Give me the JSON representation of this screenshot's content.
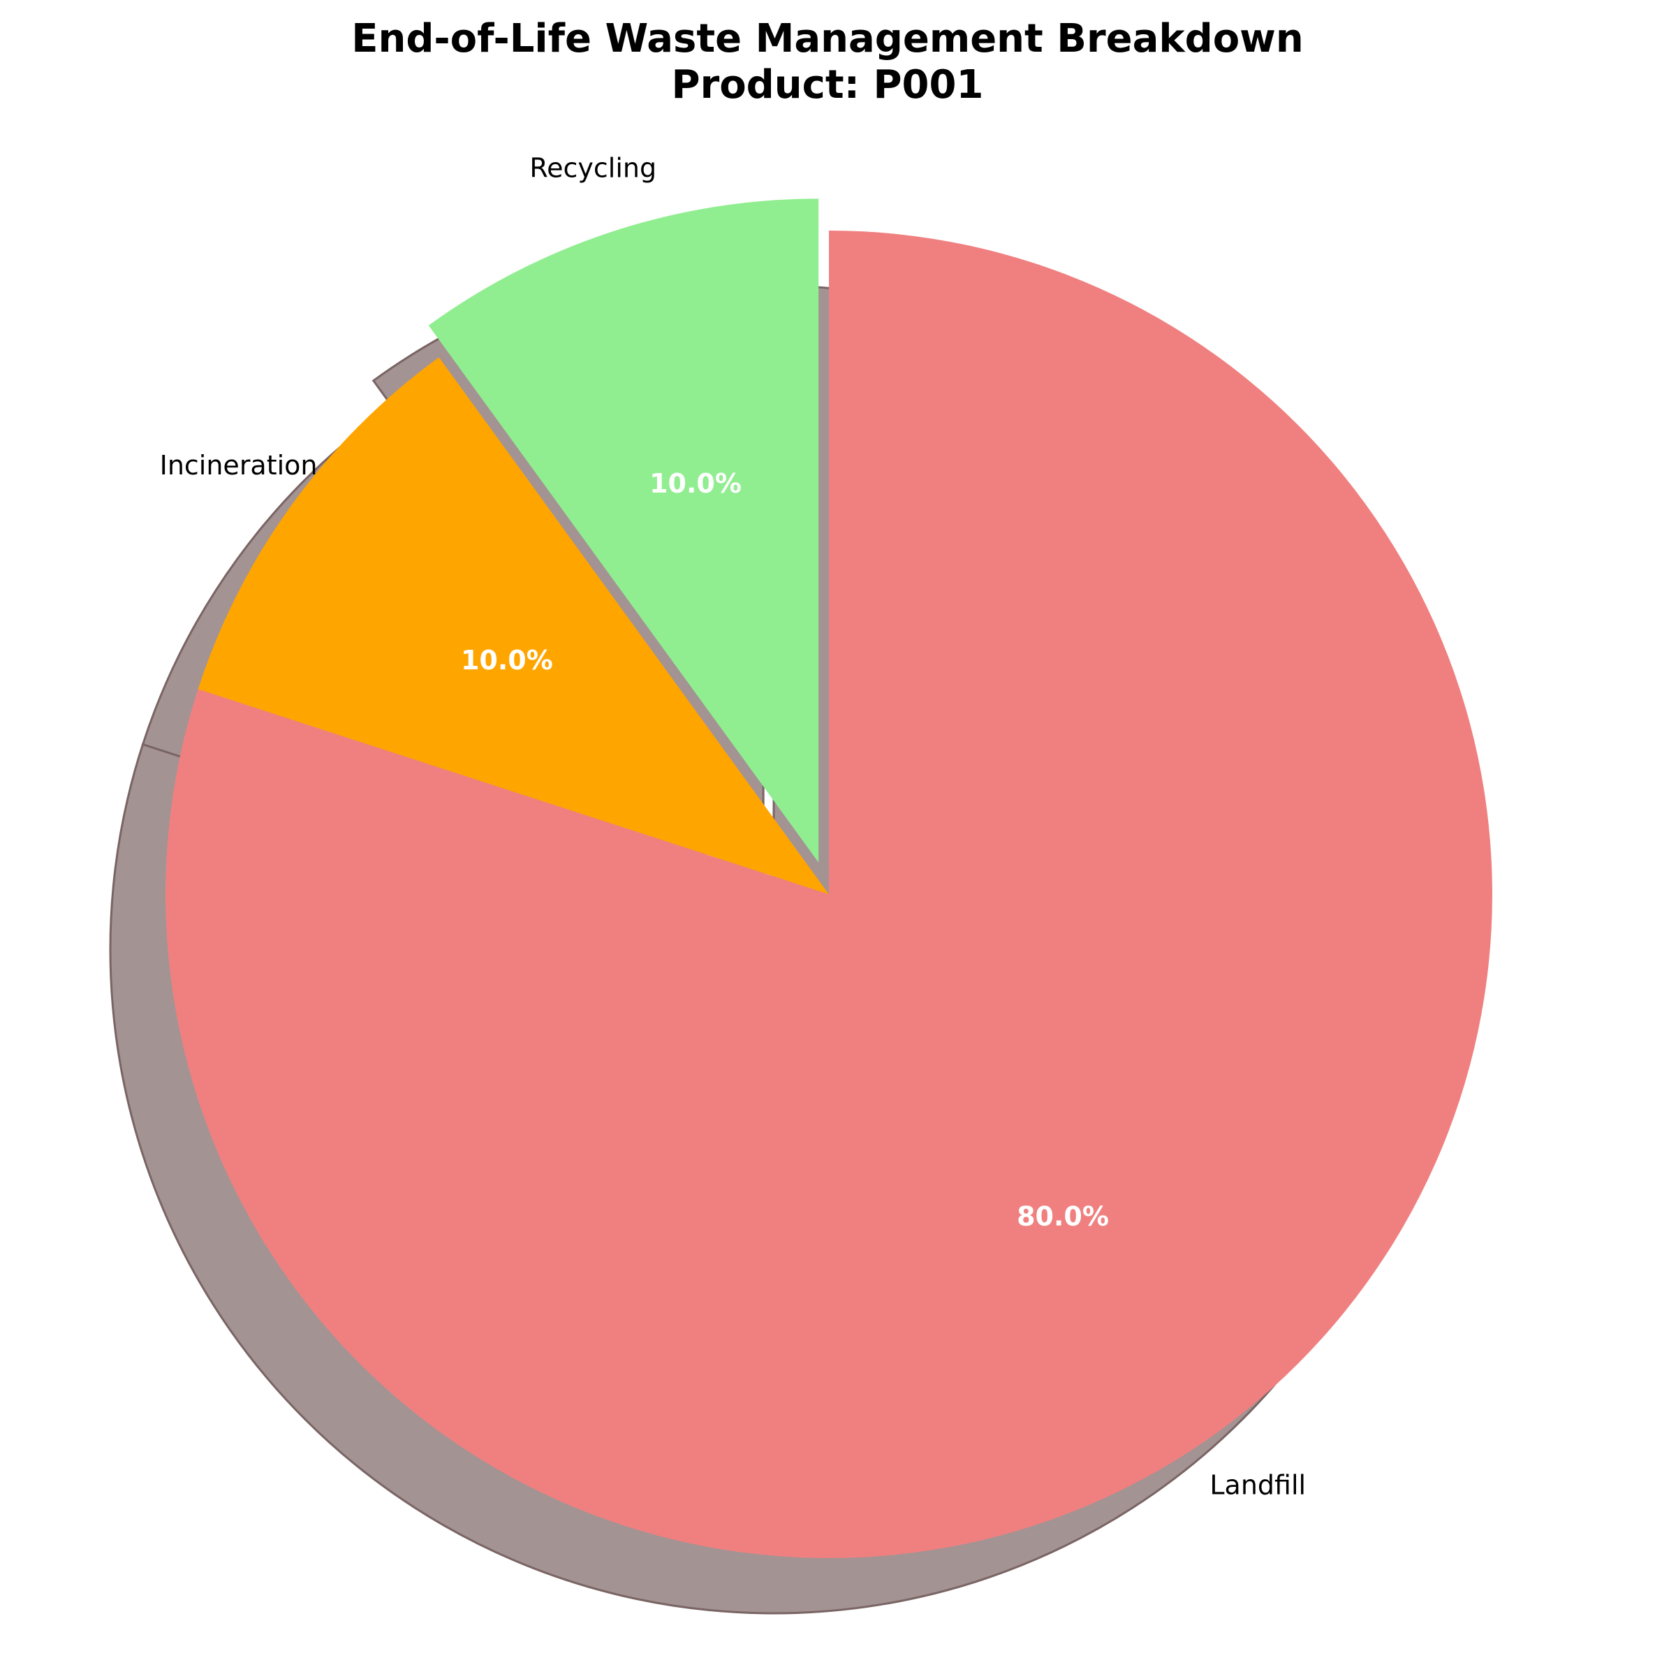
{
  "chart_data": {
    "type": "pie",
    "title": "End-of-Life Waste Management Breakdown",
    "subtitle": "Product: P001",
    "slices": [
      {
        "label": "Recycling",
        "value": 10.0,
        "pct_label": "10.0%",
        "color": "#90EE90",
        "exploded": true
      },
      {
        "label": "Incineration",
        "value": 10.0,
        "pct_label": "10.0%",
        "color": "#FFA500",
        "exploded": false
      },
      {
        "label": "Landfill",
        "value": 80.0,
        "pct_label": "80.0%",
        "color": "#F08080",
        "exploded": false
      }
    ],
    "start_angle_deg": 90,
    "direction": "counterclockwise",
    "shadow": true,
    "shadow_color": "#A39393",
    "legend": "none"
  }
}
